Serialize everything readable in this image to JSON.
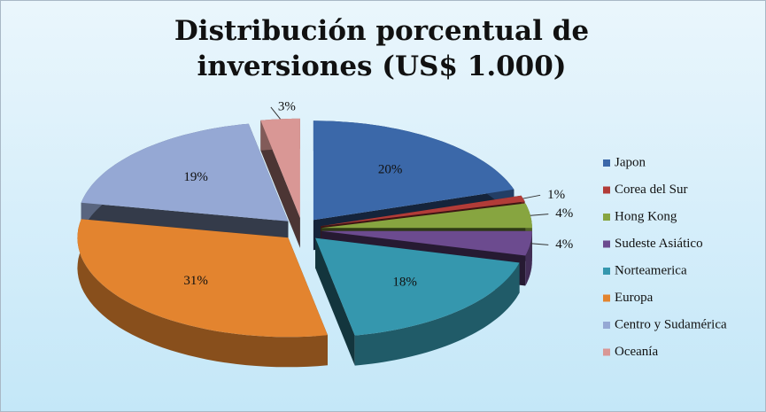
{
  "chart_data": {
    "type": "pie3d",
    "title": "Distribución porcentual de inversiones (US$ 1.000)",
    "categories": [
      "Japon",
      "Corea del Sur",
      "Hong Kong",
      "Sudeste Asiático",
      "Norteamerica",
      "Europa",
      "Centro y Sudamérica",
      "Oceanía"
    ],
    "values": [
      20,
      1,
      4,
      4,
      18,
      31,
      19,
      3
    ],
    "value_labels": [
      "20%",
      "1%",
      "4%",
      "4%",
      "18%",
      "31%",
      "19%",
      "3%"
    ],
    "colors": [
      "#3b68a9",
      "#b23c38",
      "#87a540",
      "#6c4b8f",
      "#3597ae",
      "#e3842f",
      "#95a8d4",
      "#d99795"
    ],
    "legend": "right"
  }
}
